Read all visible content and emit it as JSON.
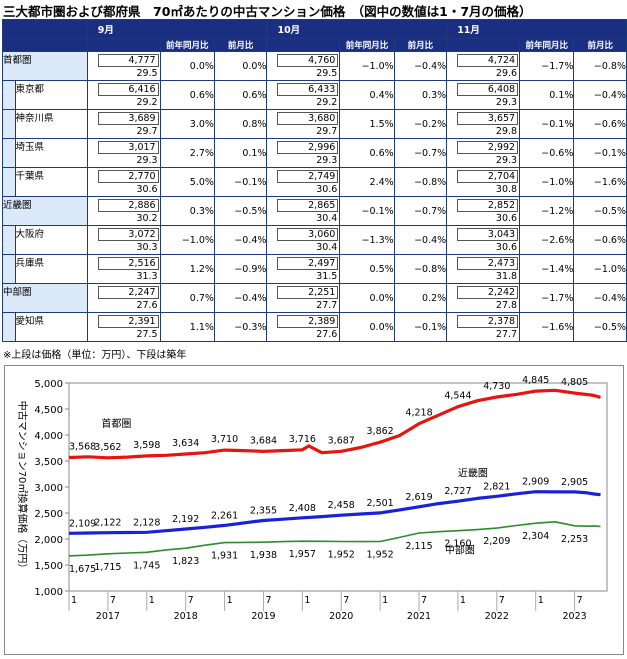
{
  "title": "三大都市圏および都府県　70㎡あたりの中古マンション価格　（図中の数値は1・7月の価格）",
  "note": "※上段は価格（単位：万円）、下段は築年",
  "table": {
    "months": [
      "9月",
      "10月",
      "11月"
    ],
    "sub_yoy": "前年同月比",
    "sub_mom": "前月比",
    "rows": [
      {
        "name": "首都圏",
        "level": 0,
        "cells": [
          {
            "price": "4,777",
            "age": "29.5",
            "yoy": "0.0%",
            "mom": "0.0%"
          },
          {
            "price": "4,760",
            "age": "29.5",
            "yoy": "−1.0%",
            "mom": "−0.4%"
          },
          {
            "price": "4,724",
            "age": "29.6",
            "yoy": "−1.7%",
            "mom": "−0.8%"
          }
        ]
      },
      {
        "name": "東京都",
        "level": 1,
        "cells": [
          {
            "price": "6,416",
            "age": "29.2",
            "yoy": "0.6%",
            "mom": "0.6%"
          },
          {
            "price": "6,433",
            "age": "29.2",
            "yoy": "0.4%",
            "mom": "0.3%"
          },
          {
            "price": "6,408",
            "age": "29.3",
            "yoy": "0.1%",
            "mom": "−0.4%"
          }
        ]
      },
      {
        "name": "神奈川県",
        "level": 1,
        "cells": [
          {
            "price": "3,689",
            "age": "29.7",
            "yoy": "3.0%",
            "mom": "0.8%"
          },
          {
            "price": "3,680",
            "age": "29.7",
            "yoy": "1.5%",
            "mom": "−0.2%"
          },
          {
            "price": "3,657",
            "age": "29.8",
            "yoy": "−0.1%",
            "mom": "−0.6%"
          }
        ]
      },
      {
        "name": "埼玉県",
        "level": 1,
        "cells": [
          {
            "price": "3,017",
            "age": "29.3",
            "yoy": "2.7%",
            "mom": "0.1%"
          },
          {
            "price": "2,996",
            "age": "29.3",
            "yoy": "0.6%",
            "mom": "−0.7%"
          },
          {
            "price": "2,992",
            "age": "29.3",
            "yoy": "−0.6%",
            "mom": "−0.1%"
          }
        ]
      },
      {
        "name": "千葉県",
        "level": 1,
        "cells": [
          {
            "price": "2,770",
            "age": "30.6",
            "yoy": "5.0%",
            "mom": "−0.1%"
          },
          {
            "price": "2,749",
            "age": "30.6",
            "yoy": "2.4%",
            "mom": "−0.8%"
          },
          {
            "price": "2,704",
            "age": "30.8",
            "yoy": "−1.0%",
            "mom": "−1.6%"
          }
        ]
      },
      {
        "name": "近畿圏",
        "level": 0,
        "cells": [
          {
            "price": "2,886",
            "age": "30.2",
            "yoy": "0.3%",
            "mom": "−0.5%"
          },
          {
            "price": "2,865",
            "age": "30.4",
            "yoy": "−0.1%",
            "mom": "−0.7%"
          },
          {
            "price": "2,852",
            "age": "30.6",
            "yoy": "−1.2%",
            "mom": "−0.5%"
          }
        ]
      },
      {
        "name": "大阪府",
        "level": 1,
        "cells": [
          {
            "price": "3,072",
            "age": "30.3",
            "yoy": "−1.0%",
            "mom": "−0.4%"
          },
          {
            "price": "3,060",
            "age": "30.4",
            "yoy": "−1.3%",
            "mom": "−0.4%"
          },
          {
            "price": "3,043",
            "age": "30.6",
            "yoy": "−2.6%",
            "mom": "−0.6%"
          }
        ]
      },
      {
        "name": "兵庫県",
        "level": 1,
        "cells": [
          {
            "price": "2,516",
            "age": "31.3",
            "yoy": "1.2%",
            "mom": "−0.9%"
          },
          {
            "price": "2,497",
            "age": "31.5",
            "yoy": "0.5%",
            "mom": "−0.8%"
          },
          {
            "price": "2,473",
            "age": "31.8",
            "yoy": "−1.4%",
            "mom": "−1.0%"
          }
        ]
      },
      {
        "name": "中部圏",
        "level": 0,
        "cells": [
          {
            "price": "2,247",
            "age": "27.6",
            "yoy": "0.7%",
            "mom": "−0.4%"
          },
          {
            "price": "2,251",
            "age": "27.7",
            "yoy": "0.0%",
            "mom": "0.2%"
          },
          {
            "price": "2,242",
            "age": "27.8",
            "yoy": "−1.7%",
            "mom": "−0.4%"
          }
        ]
      },
      {
        "name": "愛知県",
        "level": 1,
        "cells": [
          {
            "price": "2,391",
            "age": "27.5",
            "yoy": "1.1%",
            "mom": "−0.3%"
          },
          {
            "price": "2,389",
            "age": "27.6",
            "yoy": "0.0%",
            "mom": "−0.1%"
          },
          {
            "price": "2,378",
            "age": "27.7",
            "yoy": "−1.6%",
            "mom": "−0.5%"
          }
        ]
      }
    ]
  },
  "chart_data": {
    "type": "line",
    "ylabel": "中古マンション70㎡換算価格（万円）",
    "ylim": [
      1000,
      5000
    ],
    "yticks": [
      "1,000",
      "1,500",
      "2,000",
      "2,500",
      "3,000",
      "3,500",
      "4,000",
      "4,500",
      "5,000"
    ],
    "yticks_values": [
      1000,
      1500,
      2000,
      2500,
      3000,
      3500,
      4000,
      4500,
      5000
    ],
    "x_month_labels": [
      "1",
      "7",
      "1",
      "7",
      "1",
      "7",
      "1",
      "7",
      "1",
      "7",
      "1",
      "7",
      "1",
      "7"
    ],
    "x_year_labels": [
      "2017",
      "2018",
      "2019",
      "2020",
      "2021",
      "2022",
      "2023"
    ],
    "x_range": [
      "2017-01",
      "2023-11"
    ],
    "grid": false,
    "series": [
      {
        "name": "首都圏",
        "color": "#e8140e",
        "x": [
          "2017-01",
          "2017-04",
          "2017-07",
          "2017-10",
          "2018-01",
          "2018-04",
          "2018-07",
          "2018-10",
          "2019-01",
          "2019-04",
          "2019-07",
          "2019-10",
          "2020-01",
          "2020-02",
          "2020-04",
          "2020-07",
          "2020-10",
          "2021-01",
          "2021-04",
          "2021-07",
          "2021-10",
          "2022-01",
          "2022-04",
          "2022-07",
          "2022-10",
          "2023-01",
          "2023-04",
          "2023-07",
          "2023-09",
          "2023-10",
          "2023-11"
        ],
        "values": [
          3568,
          3580,
          3562,
          3575,
          3598,
          3610,
          3634,
          3660,
          3710,
          3700,
          3684,
          3700,
          3716,
          3790,
          3660,
          3687,
          3760,
          3862,
          3990,
          4218,
          4380,
          4544,
          4660,
          4730,
          4780,
          4845,
          4860,
          4805,
          4777,
          4760,
          4724
        ],
        "labels": [
          "3,568",
          "3,562",
          "3,598",
          "3,634",
          "3,710",
          "3,684",
          "3,716",
          "3,687",
          "3,862",
          "4,218",
          "4,544",
          "4,730",
          "4,845",
          "4,805"
        ]
      },
      {
        "name": "近畿圏",
        "color": "#1a21d9",
        "x": [
          "2017-01",
          "2017-04",
          "2017-07",
          "2017-10",
          "2018-01",
          "2018-04",
          "2018-07",
          "2018-10",
          "2019-01",
          "2019-04",
          "2019-07",
          "2019-10",
          "2020-01",
          "2020-04",
          "2020-07",
          "2020-10",
          "2021-01",
          "2021-04",
          "2021-07",
          "2021-10",
          "2022-01",
          "2022-04",
          "2022-07",
          "2022-10",
          "2023-01",
          "2023-04",
          "2023-07",
          "2023-09",
          "2023-10",
          "2023-11"
        ],
        "values": [
          2109,
          2115,
          2122,
          2125,
          2128,
          2160,
          2192,
          2225,
          2261,
          2310,
          2355,
          2380,
          2408,
          2430,
          2458,
          2480,
          2501,
          2560,
          2619,
          2680,
          2727,
          2780,
          2821,
          2870,
          2909,
          2905,
          2905,
          2886,
          2865,
          2852
        ],
        "labels": [
          "2,109",
          "2,122",
          "2,128",
          "2,192",
          "2,261",
          "2,355",
          "2,408",
          "2,458",
          "2,501",
          "2,619",
          "2,727",
          "2,821",
          "2,909",
          "2,905"
        ]
      },
      {
        "name": "中部圏",
        "color": "#2e8b2e",
        "x": [
          "2017-01",
          "2017-04",
          "2017-07",
          "2017-10",
          "2018-01",
          "2018-04",
          "2018-07",
          "2018-10",
          "2019-01",
          "2019-04",
          "2019-07",
          "2019-10",
          "2020-01",
          "2020-04",
          "2020-07",
          "2020-10",
          "2021-01",
          "2021-04",
          "2021-07",
          "2021-10",
          "2022-01",
          "2022-04",
          "2022-07",
          "2022-10",
          "2023-01",
          "2023-04",
          "2023-07",
          "2023-09",
          "2023-10",
          "2023-11"
        ],
        "values": [
          1675,
          1690,
          1715,
          1730,
          1745,
          1790,
          1823,
          1880,
          1931,
          1935,
          1938,
          1950,
          1957,
          1955,
          1952,
          1950,
          1952,
          2030,
          2115,
          2140,
          2160,
          2180,
          2209,
          2260,
          2304,
          2330,
          2253,
          2247,
          2251,
          2242
        ],
        "labels": [
          "1,675",
          "1,715",
          "1,745",
          "1,823",
          "1,931",
          "1,938",
          "1,957",
          "1,952",
          "1,952",
          "2,115",
          "2,160",
          "2,209",
          "2,304",
          "2,253"
        ]
      }
    ]
  }
}
